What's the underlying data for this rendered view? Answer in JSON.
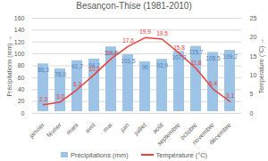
{
  "chart_data": {
    "type": "bar",
    "title": "Besançon-Thise (1981-2010)",
    "categories": [
      "janvier",
      "février",
      "mars",
      "avril",
      "mai",
      "juin",
      "juillet",
      "août",
      "septembre",
      "octobre",
      "novembre",
      "décembre"
    ],
    "series": [
      {
        "name": "Précipitations (mm)",
        "type": "bar",
        "color": "#9dc3e6",
        "values": [
          86.3,
          78.0,
          91.7,
          94.2,
          114.8,
          101.5,
          90.0,
          93.9,
          107.2,
          115.7,
          105.5,
          109.2
        ],
        "value_labels": [
          "86,3",
          "78,0",
          "91,7",
          "94,2",
          "114,8",
          "101,5",
          "90",
          "93,9",
          "107,2",
          "115,7",
          "105,5",
          "109,2"
        ]
      },
      {
        "name": "Température (°C)",
        "type": "line",
        "axis": "y2",
        "color": "#e8413c",
        "values": [
          2.3,
          3.0,
          6.3,
          10.2,
          14.4,
          17.6,
          19.9,
          19.5,
          15.8,
          11.8,
          6.4,
          3.1
        ],
        "value_labels": [
          "2,3",
          "3,0",
          "6,3",
          "10,2",
          "14,4",
          "17,6",
          "19,9",
          "19,5",
          "15,8",
          "11,8",
          "6,4",
          "3,1"
        ]
      }
    ],
    "ylabel": "Précipitations (mm)",
    "y2label": "Température (°C)",
    "ylim": [
      0,
      160
    ],
    "yticks": [
      0,
      20,
      40,
      60,
      80,
      100,
      120,
      140,
      160
    ],
    "y2lim": [
      0,
      25
    ],
    "y2ticks": [
      0,
      5,
      10,
      15,
      20,
      25
    ],
    "grid": true,
    "data_labels": true,
    "legend": "bottom"
  }
}
